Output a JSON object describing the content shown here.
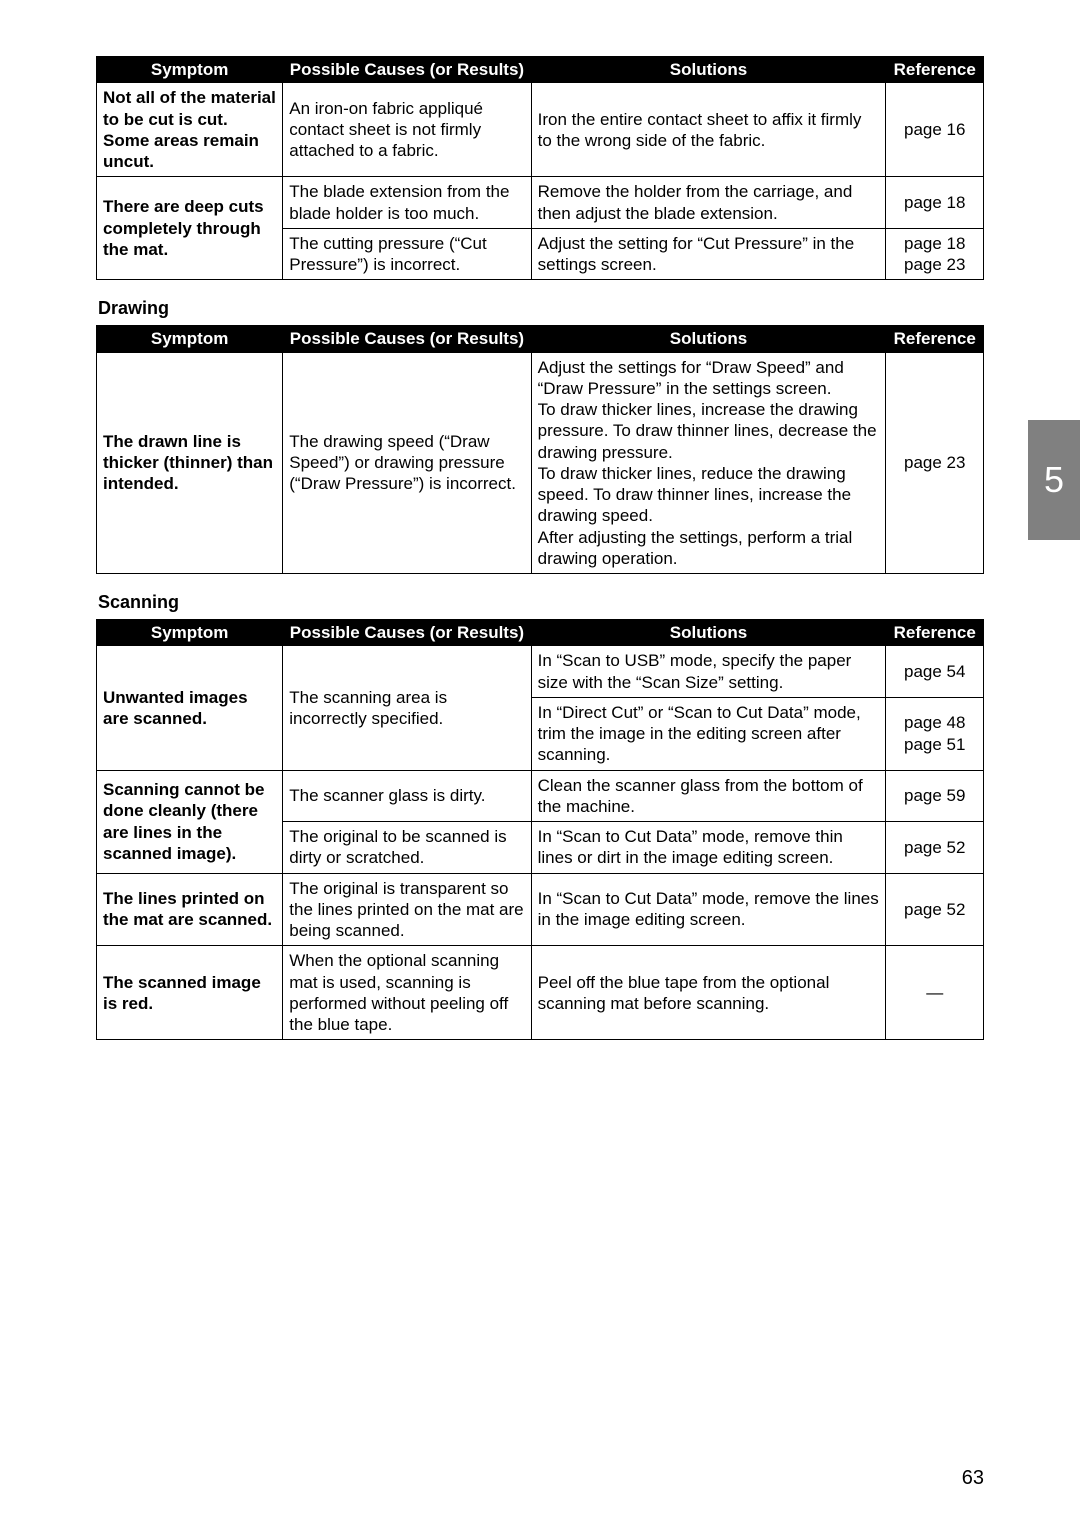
{
  "chapter_number": "5",
  "page_number": "63",
  "headers": {
    "symptom": "Symptom",
    "cause": "Possible Causes (or Results)",
    "solution": "Solutions",
    "reference": "Reference"
  },
  "sections": {
    "cutting": {
      "rows": [
        {
          "symptom": "Not all of the material to be cut is cut. Some areas remain uncut.",
          "cause": "An iron-on fabric appliqué contact sheet is not firmly attached to a fabric.",
          "solution": "Iron the entire contact sheet to affix it firmly to the wrong side of the fabric.",
          "reference": "page 16"
        },
        {
          "symptom": "There are deep cuts completely through the mat.",
          "cause": "The blade extension from the blade holder is too much.",
          "solution": "Remove the holder from the carriage, and then adjust the blade extension.",
          "reference": "page 18"
        },
        {
          "cause": "The cutting pressure (“Cut Pressure”) is incorrect.",
          "solution": "Adjust the setting for “Cut Pressure” in the settings screen.",
          "reference": "page 18\npage 23"
        }
      ]
    },
    "drawing": {
      "title": "Drawing",
      "rows": [
        {
          "symptom": "The drawn line is thicker (thinner) than intended.",
          "cause": "The drawing speed (“Draw Speed”) or drawing pressure (“Draw Pressure”) is incorrect.",
          "solution": "Adjust the settings for “Draw Speed” and “Draw Pressure” in the settings screen.\nTo draw thicker lines, increase the drawing pressure. To draw thinner lines, decrease the drawing pressure.\nTo draw thicker lines, reduce the drawing speed. To draw thinner lines, increase the drawing speed.\nAfter adjusting the settings, perform a trial drawing operation.",
          "reference": "page 23"
        }
      ]
    },
    "scanning": {
      "title": "Scanning",
      "rows": [
        {
          "symptom": "Unwanted images are scanned.",
          "cause": "The scanning area is incorrectly specified.",
          "solution": "In “Scan to USB” mode, specify the paper size with the “Scan Size” setting.",
          "reference": "page 54"
        },
        {
          "solution": "In “Direct Cut” or “Scan to Cut Data” mode, trim the image in the editing screen after scanning.",
          "reference": "page 48\npage 51"
        },
        {
          "symptom": "Scanning cannot be done cleanly (there are lines in the scanned image).",
          "cause": "The scanner glass is dirty.",
          "solution": "Clean the scanner glass from the bottom of the machine.",
          "reference": "page 59"
        },
        {
          "cause": "The original to be scanned is dirty or scratched.",
          "solution": "In “Scan to Cut Data” mode, remove thin lines or dirt in the image editing screen.",
          "reference": "page 52"
        },
        {
          "symptom": "The lines printed on the mat are scanned.",
          "cause": "The original is transparent so the lines printed on the mat are being scanned.",
          "solution": "In “Scan to Cut Data” mode, remove the lines in the image editing screen.",
          "reference": "page 52"
        },
        {
          "symptom": "The scanned image is red.",
          "cause": "When the optional scanning mat is used, scanning is performed without peeling off the blue tape.",
          "solution": "Peel off the blue tape from the optional scanning mat before scanning.",
          "reference": "—"
        }
      ]
    }
  }
}
